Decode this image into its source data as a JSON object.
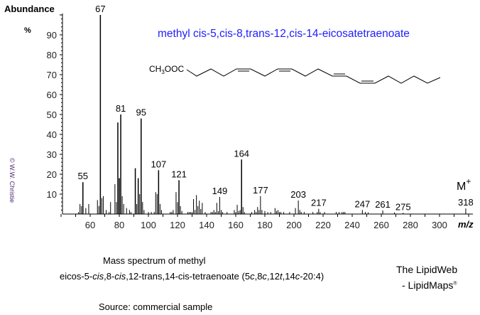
{
  "chart_data": {
    "type": "bar",
    "title": "methyl cis-5,cis-8,trans-12,cis-14-eicosatetraenoate",
    "ylabel": "Abundance",
    "yunit": "%",
    "xlabel": "m/z",
    "xlim": [
      40,
      322
    ],
    "ylim": [
      0,
      100
    ],
    "xticks": [
      60,
      80,
      100,
      120,
      140,
      160,
      180,
      200,
      220,
      240,
      260,
      280,
      300
    ],
    "yticks": [
      10,
      20,
      30,
      40,
      50,
      60,
      70,
      80,
      90
    ],
    "grid": false,
    "peaks": [
      [
        52,
        1
      ],
      [
        53,
        5
      ],
      [
        54,
        4
      ],
      [
        55,
        16
      ],
      [
        57,
        3
      ],
      [
        59,
        5
      ],
      [
        65,
        7
      ],
      [
        66,
        4
      ],
      [
        67,
        100
      ],
      [
        68,
        8
      ],
      [
        69,
        9
      ],
      [
        71,
        2
      ],
      [
        73,
        1
      ],
      [
        74,
        6
      ],
      [
        77,
        15
      ],
      [
        78,
        6
      ],
      [
        79,
        46
      ],
      [
        80,
        18
      ],
      [
        81,
        50
      ],
      [
        82,
        9
      ],
      [
        83,
        5
      ],
      [
        85,
        3
      ],
      [
        87,
        2
      ],
      [
        88,
        1
      ],
      [
        91,
        23
      ],
      [
        92,
        5
      ],
      [
        93,
        18
      ],
      [
        94,
        10
      ],
      [
        95,
        48
      ],
      [
        96,
        6
      ],
      [
        97,
        2
      ],
      [
        100,
        1
      ],
      [
        102,
        1
      ],
      [
        104,
        1
      ],
      [
        105,
        11
      ],
      [
        106,
        10
      ],
      [
        107,
        22
      ],
      [
        108,
        5
      ],
      [
        109,
        2
      ],
      [
        115,
        1
      ],
      [
        116,
        1
      ],
      [
        117,
        2
      ],
      [
        119,
        11
      ],
      [
        120,
        6
      ],
      [
        121,
        17
      ],
      [
        122,
        4
      ],
      [
        123,
        1.5
      ],
      [
        127,
        1
      ],
      [
        128,
        1
      ],
      [
        129,
        1
      ],
      [
        130,
        1
      ],
      [
        131,
        7.5
      ],
      [
        132,
        2
      ],
      [
        133,
        9.5
      ],
      [
        134,
        4
      ],
      [
        135,
        6.7
      ],
      [
        136,
        2.5
      ],
      [
        137,
        5.6
      ],
      [
        139,
        1
      ],
      [
        143,
        1
      ],
      [
        144,
        1
      ],
      [
        145,
        2
      ],
      [
        146,
        1
      ],
      [
        147,
        5.6
      ],
      [
        148,
        1.5
      ],
      [
        149,
        8.6
      ],
      [
        150,
        2
      ],
      [
        151,
        1
      ],
      [
        154,
        1
      ],
      [
        159,
        2
      ],
      [
        160,
        1
      ],
      [
        161,
        4.6
      ],
      [
        162,
        1.5
      ],
      [
        163,
        2
      ],
      [
        164,
        27.4
      ],
      [
        165,
        3.5
      ],
      [
        166,
        1
      ],
      [
        171,
        1
      ],
      [
        173,
        2
      ],
      [
        174,
        1
      ],
      [
        175,
        3.5
      ],
      [
        176,
        2
      ],
      [
        177,
        9
      ],
      [
        178,
        2
      ],
      [
        180,
        1.5
      ],
      [
        182,
        1
      ],
      [
        184,
        1
      ],
      [
        187,
        3
      ],
      [
        188,
        1.5
      ],
      [
        189,
        2
      ],
      [
        190,
        1
      ],
      [
        191,
        1
      ],
      [
        193,
        1
      ],
      [
        197,
        1
      ],
      [
        201,
        3
      ],
      [
        203,
        6.8
      ],
      [
        204,
        2
      ],
      [
        205,
        1
      ],
      [
        207,
        1
      ],
      [
        213,
        1
      ],
      [
        216,
        1
      ],
      [
        217,
        2.6
      ],
      [
        218,
        1
      ],
      [
        221,
        1
      ],
      [
        229,
        1
      ],
      [
        231,
        1
      ],
      [
        233,
        1
      ],
      [
        234,
        1
      ],
      [
        235,
        1
      ],
      [
        247,
        2
      ],
      [
        249,
        1
      ],
      [
        251,
        0.8
      ],
      [
        261,
        1.8
      ],
      [
        269,
        0.8
      ],
      [
        275,
        0.6
      ],
      [
        318,
        2.8
      ]
    ],
    "peak_labels": [
      55,
      67,
      81,
      95,
      107,
      121,
      149,
      164,
      177,
      203,
      217,
      247,
      261,
      275,
      318
    ],
    "molecular_ion_label": "M",
    "molecular_ion_sup": "+",
    "structure_label": "CH",
    "structure_sub": "3",
    "structure_rest": "OOC",
    "colors": {
      "title": "#1e1eff",
      "bars": "#000000",
      "copyright": "#4b1f6f"
    }
  },
  "copyright": "© W.W. Christie",
  "caption": {
    "line1": "Mass spectrum of methyl",
    "line2_pre": "eicos-5-",
    "line2_i1": "cis",
    "line2_m1": ",8-",
    "line2_i2": "cis",
    "line2_m2": ",12-trans,14-cis-tetraenoate (5",
    "line2_i3": "c",
    "line2_m3": ",8",
    "line2_i4": "c",
    "line2_m4": ",12",
    "line2_i5": "t",
    "line2_m5": ",14",
    "line2_i6": "c",
    "line2_end": "-20:4)",
    "source": "Source:  commercial sample"
  },
  "brand": {
    "line1": "The LipidWeb",
    "line2": "- LipidMaps",
    "reg": "®"
  }
}
